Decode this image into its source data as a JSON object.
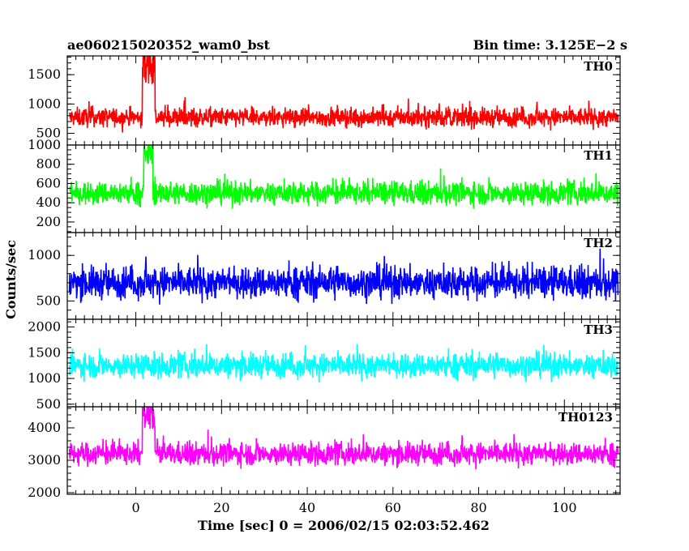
{
  "chart_data": {
    "type": "line",
    "title_left": "ae060215020352_wam0_bst",
    "title_right": "Bin time: 3.125E−2 s",
    "xlabel": "Time [sec] 0 = 2006/02/15 02:03:52.462",
    "ylabel": "Counts/sec",
    "xlim": [
      -16,
      113
    ],
    "data_x_range": [
      -15.5,
      112.5
    ],
    "x_ticks": [
      0,
      20,
      40,
      60,
      80,
      100
    ],
    "x_tick_labels": [
      "0",
      "20",
      "40",
      "60",
      "80",
      "100"
    ],
    "x_minor_step": 2,
    "grid": false,
    "legend": "none",
    "panels": [
      {
        "label": "TH0",
        "color": "#ff0000",
        "ylim": [
          300,
          1820
        ],
        "y_ticks": [
          500,
          1000,
          1500
        ],
        "y_tick_labels": [
          "500",
          "1000",
          "1500"
        ],
        "y_minor_step": 100,
        "mean": 770,
        "spread": 150,
        "max_typical": 1300,
        "min_typical": 200,
        "burst": {
          "start": 1.5,
          "end": 4.5,
          "peak": 1820
        }
      },
      {
        "label": "TH1",
        "color": "#00ff00",
        "ylim": [
          90,
          1000
        ],
        "y_ticks": [
          200,
          400,
          600,
          800,
          1000
        ],
        "y_tick_labels": [
          "200",
          "400",
          "600",
          "800",
          "1000"
        ],
        "y_minor_step": 50,
        "mean": 500,
        "spread": 110,
        "max_typical": 930,
        "min_typical": 130,
        "burst": {
          "start": 1.8,
          "end": 4.0,
          "peak": 1000
        }
      },
      {
        "label": "TH2",
        "color": "#0000ff",
        "ylim": [
          300,
          1250
        ],
        "y_ticks": [
          500,
          1000
        ],
        "y_tick_labels": [
          "500",
          "1000"
        ],
        "y_minor_step": 100,
        "mean": 700,
        "spread": 160,
        "max_typical": 1250,
        "min_typical": 300,
        "burst": null
      },
      {
        "label": "TH3",
        "color": "#00ffff",
        "ylim": [
          450,
          2150
        ],
        "y_ticks": [
          500,
          1000,
          1500,
          2000
        ],
        "y_tick_labels": [
          "500",
          "1000",
          "1500",
          "2000"
        ],
        "y_minor_step": 100,
        "mean": 1250,
        "spread": 220,
        "max_typical": 2050,
        "min_typical": 550,
        "burst": null
      },
      {
        "label": "TH0123",
        "color": "#ff00ff",
        "ylim": [
          1950,
          4650
        ],
        "y_ticks": [
          2000,
          3000,
          4000
        ],
        "y_tick_labels": [
          "2000",
          "3000",
          "4000"
        ],
        "y_minor_step": 200,
        "mean": 3200,
        "spread": 320,
        "max_typical": 4400,
        "min_typical": 2100,
        "burst": {
          "start": 1.5,
          "end": 4.5,
          "peak": 4600
        }
      }
    ]
  }
}
